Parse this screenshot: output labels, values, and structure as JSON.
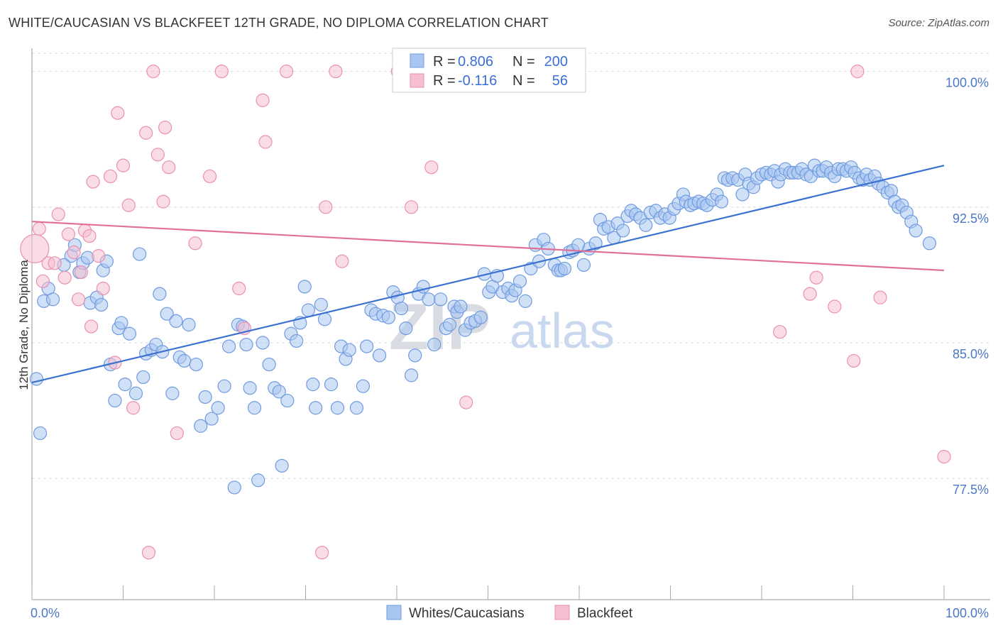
{
  "title": "WHITE/CAUCASIAN VS BLACKFEET 12TH GRADE, NO DIPLOMA CORRELATION CHART",
  "source": "Source: ZipAtlas.com",
  "watermark": {
    "zip": "ZIP",
    "atlas": "atlas"
  },
  "colors": {
    "blue": "#3b72d0",
    "blue_fill": "#a9c6f0",
    "blue_stroke": "#6f9be0",
    "pink": "#e0709a",
    "pink_fill": "#f6bfd0",
    "pink_stroke": "#ea90b0",
    "grid": "#dddddd",
    "axis_text": "#4a78c8"
  },
  "legend": {
    "rows": [
      {
        "r_label": "R =",
        "r_value": "0.806",
        "n_label": "N =",
        "n_value": "200"
      },
      {
        "r_label": "R =",
        "r_value": "-0.116",
        "n_label": "N =",
        "n_value": "56"
      }
    ]
  },
  "bottom_legend": [
    "Whites/Caucasians",
    "Blackfeet"
  ],
  "chart_data": {
    "type": "scatter",
    "title": "WHITE/CAUCASIAN VS BLACKFEET 12TH GRADE, NO DIPLOMA CORRELATION CHART",
    "xlabel": "",
    "ylabel": "12th Grade, No Diploma",
    "xlim": [
      0,
      100
    ],
    "ylim": [
      70.8,
      101.2
    ],
    "x_tick_labels": [
      "0.0%",
      "100.0%"
    ],
    "y_ticks": [
      77.5,
      85.0,
      92.5,
      100.0
    ],
    "y_tick_labels": [
      "77.5%",
      "85.0%",
      "92.5%",
      "100.0%"
    ],
    "grid": true,
    "legend_position": "top-center",
    "series": [
      {
        "name": "Whites/Caucasians",
        "color": "#6f9be0",
        "trend": {
          "x": [
            0,
            100
          ],
          "y": [
            82.8,
            94.8
          ]
        },
        "points": [
          [
            0.5,
            83.0
          ],
          [
            0.9,
            80.0
          ],
          [
            1.3,
            87.3
          ],
          [
            1.8,
            88.0
          ],
          [
            2.3,
            87.4
          ],
          [
            4.3,
            89.8
          ],
          [
            4.7,
            90.4
          ],
          [
            3.5,
            89.3
          ],
          [
            5.2,
            88.9
          ],
          [
            5.6,
            89.4
          ],
          [
            6.1,
            89.7
          ],
          [
            6.4,
            87.2
          ],
          [
            7.1,
            87.5
          ],
          [
            7.6,
            87.1
          ],
          [
            7.8,
            89.0
          ],
          [
            8.2,
            89.5
          ],
          [
            8.6,
            83.8
          ],
          [
            9.1,
            81.8
          ],
          [
            9.5,
            85.8
          ],
          [
            9.8,
            86.1
          ],
          [
            10.2,
            82.7
          ],
          [
            10.7,
            85.5
          ],
          [
            11.4,
            82.2
          ],
          [
            11.8,
            89.9
          ],
          [
            12.2,
            83.1
          ],
          [
            12.5,
            84.4
          ],
          [
            13.1,
            84.6
          ],
          [
            13.6,
            84.9
          ],
          [
            14.0,
            87.7
          ],
          [
            14.3,
            84.5
          ],
          [
            14.8,
            86.6
          ],
          [
            15.4,
            82.2
          ],
          [
            15.8,
            86.2
          ],
          [
            16.2,
            84.2
          ],
          [
            16.7,
            84.0
          ],
          [
            17.2,
            86.0
          ],
          [
            18.0,
            83.8
          ],
          [
            18.5,
            80.4
          ],
          [
            19.0,
            82.0
          ],
          [
            19.7,
            80.8
          ],
          [
            20.4,
            81.4
          ],
          [
            21.1,
            82.6
          ],
          [
            21.6,
            84.8
          ],
          [
            22.2,
            77.0
          ],
          [
            22.6,
            86.0
          ],
          [
            23.1,
            85.9
          ],
          [
            23.5,
            84.9
          ],
          [
            23.9,
            82.5
          ],
          [
            24.4,
            81.4
          ],
          [
            24.8,
            77.4
          ],
          [
            25.3,
            85.0
          ],
          [
            26.0,
            83.8
          ],
          [
            26.6,
            82.5
          ],
          [
            27.1,
            82.3
          ],
          [
            27.4,
            78.2
          ],
          [
            28.0,
            81.8
          ],
          [
            28.4,
            85.5
          ],
          [
            29.0,
            85.1
          ],
          [
            29.4,
            86.1
          ],
          [
            29.9,
            88.1
          ],
          [
            30.3,
            86.8
          ],
          [
            30.8,
            82.7
          ],
          [
            31.1,
            81.4
          ],
          [
            31.7,
            87.1
          ],
          [
            32.1,
            86.3
          ],
          [
            32.8,
            82.7
          ],
          [
            33.5,
            81.4
          ],
          [
            33.9,
            84.8
          ],
          [
            34.4,
            84.1
          ],
          [
            34.8,
            84.6
          ],
          [
            35.6,
            81.4
          ],
          [
            36.3,
            82.6
          ],
          [
            36.7,
            84.8
          ],
          [
            37.2,
            86.8
          ],
          [
            37.7,
            86.6
          ],
          [
            38.1,
            84.3
          ],
          [
            38.5,
            86.5
          ],
          [
            39.1,
            86.4
          ],
          [
            39.6,
            87.8
          ],
          [
            40.1,
            87.5
          ],
          [
            40.5,
            86.9
          ],
          [
            41.0,
            85.8
          ],
          [
            41.6,
            83.2
          ],
          [
            42.0,
            84.3
          ],
          [
            42.4,
            87.7
          ],
          [
            42.9,
            88.1
          ],
          [
            43.5,
            87.4
          ],
          [
            44.1,
            84.9
          ],
          [
            44.8,
            87.4
          ],
          [
            45.4,
            85.8
          ],
          [
            45.8,
            86.0
          ],
          [
            46.3,
            87.0
          ],
          [
            46.6,
            86.7
          ],
          [
            47.0,
            87.0
          ],
          [
            47.5,
            85.7
          ],
          [
            48.1,
            86.1
          ],
          [
            48.6,
            86.2
          ],
          [
            49.2,
            86.4
          ],
          [
            49.6,
            88.8
          ],
          [
            50.1,
            87.8
          ],
          [
            50.5,
            88.1
          ],
          [
            51.0,
            88.7
          ],
          [
            51.6,
            87.8
          ],
          [
            52.2,
            88.0
          ],
          [
            52.6,
            87.6
          ],
          [
            53.0,
            87.9
          ],
          [
            53.5,
            88.4
          ],
          [
            54.1,
            87.3
          ],
          [
            54.7,
            89.1
          ],
          [
            55.2,
            90.4
          ],
          [
            55.6,
            89.5
          ],
          [
            56.1,
            90.7
          ],
          [
            56.6,
            90.2
          ],
          [
            57.3,
            89.3
          ],
          [
            57.7,
            89.0
          ],
          [
            58.0,
            89.0
          ],
          [
            58.4,
            89.1
          ],
          [
            58.9,
            90.0
          ],
          [
            59.3,
            90.1
          ],
          [
            59.9,
            90.4
          ],
          [
            60.5,
            89.3
          ],
          [
            61.1,
            90.2
          ],
          [
            61.8,
            90.5
          ],
          [
            62.3,
            91.8
          ],
          [
            62.7,
            91.3
          ],
          [
            63.2,
            91.4
          ],
          [
            63.8,
            90.8
          ],
          [
            64.2,
            91.6
          ],
          [
            64.8,
            91.2
          ],
          [
            65.3,
            92.0
          ],
          [
            65.7,
            92.3
          ],
          [
            66.2,
            92.1
          ],
          [
            66.7,
            91.9
          ],
          [
            67.3,
            91.5
          ],
          [
            67.8,
            92.2
          ],
          [
            68.4,
            92.3
          ],
          [
            68.9,
            91.9
          ],
          [
            69.4,
            92.1
          ],
          [
            69.9,
            91.9
          ],
          [
            70.4,
            92.4
          ],
          [
            70.9,
            92.7
          ],
          [
            71.4,
            93.2
          ],
          [
            71.7,
            92.8
          ],
          [
            72.2,
            92.6
          ],
          [
            72.6,
            92.7
          ],
          [
            73.1,
            92.8
          ],
          [
            73.6,
            92.7
          ],
          [
            74.0,
            92.6
          ],
          [
            74.6,
            92.9
          ],
          [
            75.1,
            93.2
          ],
          [
            75.6,
            92.8
          ],
          [
            75.9,
            94.1
          ],
          [
            76.3,
            94.0
          ],
          [
            76.8,
            94.1
          ],
          [
            77.4,
            94.0
          ],
          [
            77.9,
            93.2
          ],
          [
            78.2,
            94.3
          ],
          [
            78.6,
            93.8
          ],
          [
            79.1,
            93.6
          ],
          [
            79.5,
            94.1
          ],
          [
            80.0,
            94.3
          ],
          [
            80.5,
            94.4
          ],
          [
            81.0,
            94.3
          ],
          [
            81.4,
            94.5
          ],
          [
            81.8,
            93.9
          ],
          [
            82.1,
            94.3
          ],
          [
            82.6,
            94.6
          ],
          [
            83.1,
            94.4
          ],
          [
            83.5,
            94.4
          ],
          [
            84.0,
            94.4
          ],
          [
            84.4,
            94.6
          ],
          [
            84.9,
            94.3
          ],
          [
            85.4,
            94.2
          ],
          [
            85.8,
            94.8
          ],
          [
            86.3,
            94.5
          ],
          [
            86.7,
            94.5
          ],
          [
            87.1,
            94.7
          ],
          [
            87.6,
            94.4
          ],
          [
            88.0,
            94.2
          ],
          [
            88.4,
            94.6
          ],
          [
            88.9,
            94.6
          ],
          [
            89.3,
            94.5
          ],
          [
            89.8,
            94.7
          ],
          [
            90.2,
            94.4
          ],
          [
            90.7,
            94.1
          ],
          [
            91.1,
            94.0
          ],
          [
            91.5,
            94.3
          ],
          [
            91.9,
            94.0
          ],
          [
            92.4,
            94.2
          ],
          [
            92.8,
            93.8
          ],
          [
            93.3,
            93.6
          ],
          [
            93.8,
            93.3
          ],
          [
            94.2,
            93.4
          ],
          [
            94.6,
            92.8
          ],
          [
            95.0,
            92.5
          ],
          [
            95.4,
            92.6
          ],
          [
            95.9,
            92.2
          ],
          [
            96.4,
            91.7
          ],
          [
            96.9,
            91.2
          ],
          [
            98.4,
            90.5
          ]
        ]
      },
      {
        "name": "Blackfeet",
        "color": "#ea90b0",
        "trend": {
          "x": [
            0,
            100
          ],
          "y": [
            91.7,
            89.0
          ]
        },
        "points": [
          [
            0.3,
            90.2
          ],
          [
            0.8,
            91.3
          ],
          [
            1.2,
            88.4
          ],
          [
            1.8,
            89.4
          ],
          [
            2.5,
            89.4
          ],
          [
            2.9,
            92.1
          ],
          [
            3.6,
            88.6
          ],
          [
            4.0,
            91.0
          ],
          [
            4.6,
            90.0
          ],
          [
            5.1,
            87.4
          ],
          [
            5.4,
            88.9
          ],
          [
            5.8,
            91.2
          ],
          [
            6.3,
            90.9
          ],
          [
            6.5,
            85.9
          ],
          [
            6.7,
            93.9
          ],
          [
            7.3,
            89.8
          ],
          [
            7.8,
            88.0
          ],
          [
            8.6,
            94.2
          ],
          [
            9.1,
            83.9
          ],
          [
            9.4,
            97.7
          ],
          [
            10.0,
            94.8
          ],
          [
            10.6,
            92.6
          ],
          [
            11.1,
            81.4
          ],
          [
            12.5,
            96.6
          ],
          [
            12.8,
            73.4
          ],
          [
            13.3,
            100.0
          ],
          [
            13.8,
            95.4
          ],
          [
            14.4,
            92.8
          ],
          [
            14.6,
            96.9
          ],
          [
            15.0,
            94.7
          ],
          [
            15.9,
            80.0
          ],
          [
            17.9,
            90.5
          ],
          [
            19.5,
            94.2
          ],
          [
            20.8,
            100.0
          ],
          [
            22.7,
            88.0
          ],
          [
            23.3,
            85.8
          ],
          [
            25.3,
            98.4
          ],
          [
            25.6,
            96.1
          ],
          [
            27.9,
            100.0
          ],
          [
            31.8,
            73.4
          ],
          [
            32.2,
            92.5
          ],
          [
            33.3,
            100.0
          ],
          [
            34.0,
            89.5
          ],
          [
            40.1,
            100.0
          ],
          [
            41.6,
            92.5
          ],
          [
            43.8,
            94.7
          ],
          [
            47.6,
            81.7
          ],
          [
            55.0,
            100.0
          ],
          [
            82.0,
            85.6
          ],
          [
            85.3,
            87.7
          ],
          [
            86.0,
            88.6
          ],
          [
            88.0,
            87.0
          ],
          [
            90.1,
            84.0
          ],
          [
            90.5,
            100.0
          ],
          [
            93.0,
            87.5
          ],
          [
            100.0,
            78.7
          ]
        ]
      }
    ]
  }
}
